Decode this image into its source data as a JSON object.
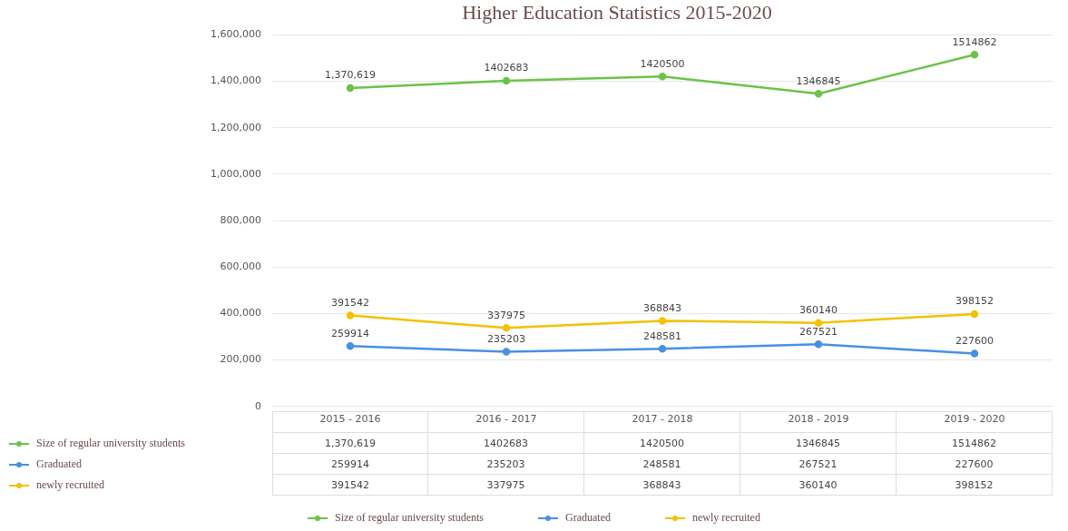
{
  "chart_data": {
    "type": "line",
    "title": "Higher Education Statistics 2015-2020",
    "categories": [
      "2015 - 2016",
      "2016 - 2017",
      "2017 - 2018",
      "2018 - 2019",
      "2019 - 2020"
    ],
    "series": [
      {
        "name": "Size of regular university students",
        "color": "#6cc24a",
        "values": [
          1370619,
          1402683,
          1420500,
          1346845,
          1514862
        ],
        "value_labels": [
          "1,370,619",
          "1402683",
          "1420500",
          "1346845",
          "1514862"
        ]
      },
      {
        "name": "Graduated",
        "color": "#4a90e2",
        "values": [
          259914,
          235203,
          248581,
          267521,
          227600
        ],
        "value_labels": [
          "259914",
          "235203",
          "248581",
          "267521",
          "227600"
        ]
      },
      {
        "name": "newly recruited",
        "color": "#f2c200",
        "values": [
          391542,
          337975,
          368843,
          360140,
          398152
        ],
        "value_labels": [
          "391542",
          "337975",
          "368843",
          "360140",
          "398152"
        ]
      }
    ],
    "ylim": [
      0,
      1600000
    ],
    "yticks": [
      {
        "value": 0,
        "label": "0"
      },
      {
        "value": 200000,
        "label": "200,000"
      },
      {
        "value": 400000,
        "label": "400,000"
      },
      {
        "value": 600000,
        "label": "600,000"
      },
      {
        "value": 800000,
        "label": "800,000"
      },
      {
        "value": 1000000,
        "label": "1,000,000"
      },
      {
        "value": 1200000,
        "label": "1,200,000"
      },
      {
        "value": 1400000,
        "label": "1,400,000"
      },
      {
        "value": 1600000,
        "label": "1,600,000"
      }
    ],
    "grid": "y",
    "legend": "bottom",
    "marker": "circle",
    "line_style": "solid"
  }
}
